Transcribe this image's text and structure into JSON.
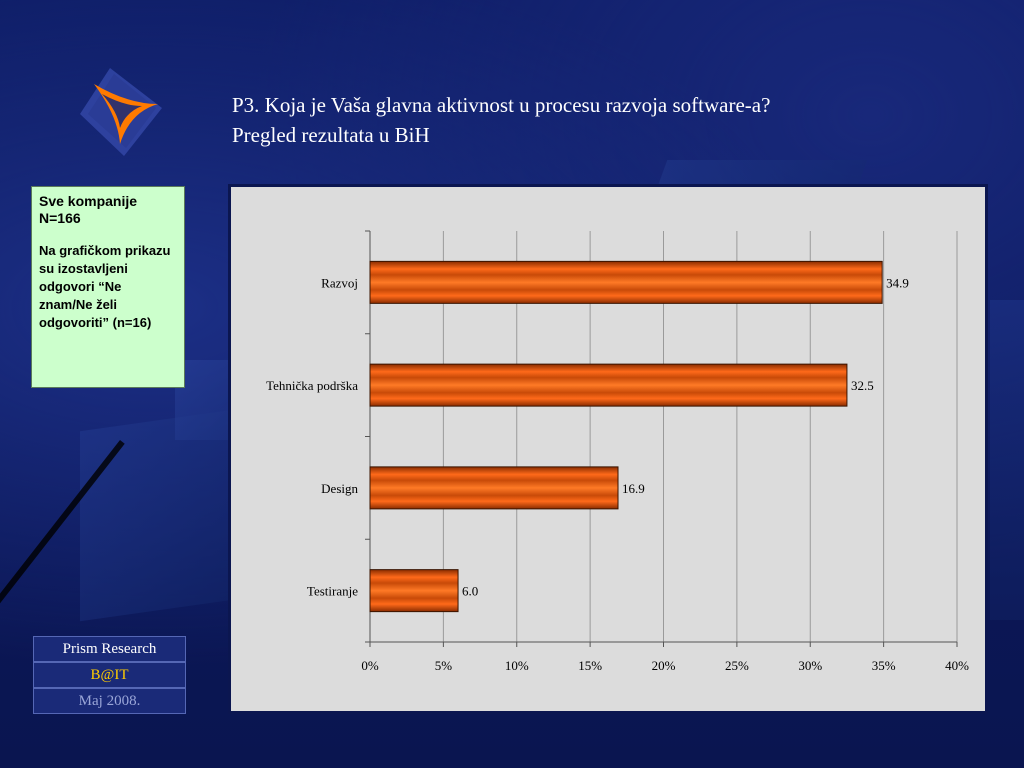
{
  "header": {
    "title_line1": "P3. Koja je Vaša glavna aktivnost u procesu razvoja software-a?",
    "title_line2": "Pregled rezultata u BiH"
  },
  "note": {
    "line1": "Sve kompanije N=166",
    "line2": "Na grafičkom prikazu su izostavljeni odgovori “Ne znam/Ne želi odgovoriti” (n=16)"
  },
  "footer": {
    "org": "Prism Research",
    "project": "B@IT",
    "date": "Maj 2008."
  },
  "colors": {
    "bar_fill": "#ff6a1a",
    "bar_dark": "#b03a00",
    "plot_bg": "#dcdcdc",
    "title_text": "#ffffff",
    "note_bg": "#ccffcc"
  },
  "chart_data": {
    "type": "bar",
    "orientation": "horizontal",
    "categories": [
      "Razvoj",
      "Tehnička podrška",
      "Design",
      "Testiranje"
    ],
    "values": [
      34.9,
      32.5,
      16.9,
      6.0
    ],
    "value_labels": [
      "34.9",
      "32.5",
      "16.9",
      "6.0"
    ],
    "xlim": [
      0,
      40
    ],
    "xticks": [
      0,
      5,
      10,
      15,
      20,
      25,
      30,
      35,
      40
    ],
    "xtick_labels": [
      "0%",
      "5%",
      "10%",
      "15%",
      "20%",
      "25%",
      "30%",
      "35%",
      "40%"
    ],
    "grid": true,
    "legend": "none"
  }
}
